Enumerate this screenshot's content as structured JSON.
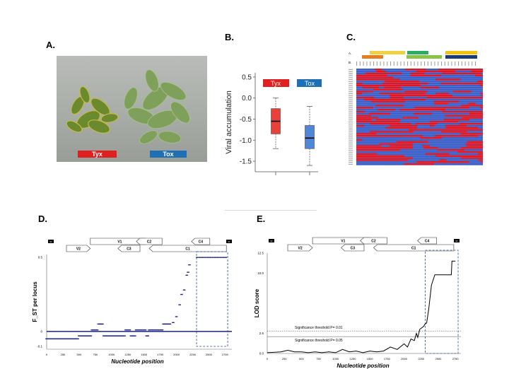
{
  "panels": {
    "a": {
      "letter": "A.",
      "labels": [
        "Tyx",
        "Tox"
      ],
      "colors": {
        "tyx": "#e02020",
        "tox": "#1f6fb5"
      }
    },
    "b": {
      "letter": "B."
    },
    "c": {
      "letter": "C.",
      "row_labels": [
        "A.",
        "B."
      ],
      "colors": {
        "red": "#e8141c",
        "blue": "#3b5fc8"
      }
    },
    "d": {
      "letter": "D."
    },
    "e": {
      "letter": "E."
    }
  },
  "chart_data": [
    {
      "id": "B",
      "type": "box",
      "ylabel": "Viral accumulation",
      "ylim": [
        -1.75,
        0.6
      ],
      "ticks_y": [
        "0.5",
        "0.0",
        "-0.5",
        "-1.0",
        "-1.5"
      ],
      "ticks_y_values": [
        0.5,
        0.0,
        -0.5,
        -1.0,
        -1.5
      ],
      "legend": [
        "Tyx",
        "Tox"
      ],
      "series": [
        {
          "name": "Tyx",
          "color": "#e8413a",
          "min": -1.2,
          "q1": -0.85,
          "median": -0.55,
          "q3": -0.25,
          "max": 0.0
        },
        {
          "name": "Tox",
          "color": "#4f86d6",
          "min": -1.6,
          "q1": -1.2,
          "median": -0.95,
          "q3": -0.65,
          "max": -0.2
        }
      ]
    },
    {
      "id": "D",
      "type": "scatter",
      "xlabel": "Nucleotide position",
      "ylabel": "F_ST per locus",
      "xlim": [
        0,
        2800
      ],
      "ylim": [
        -0.12,
        0.52
      ],
      "ticks_x": [
        "0",
        "250",
        "500",
        "750",
        "1000",
        "1250",
        "1500",
        "1750",
        "2000",
        "2250",
        "2500",
        "2750"
      ],
      "ticks_x_values": [
        0,
        250,
        500,
        750,
        1000,
        1250,
        1500,
        1750,
        2000,
        2250,
        2500,
        2750
      ],
      "ticks_y": [
        "0.5",
        "0",
        "-0.1"
      ],
      "ticks_y_values": [
        0.5,
        0,
        -0.1
      ],
      "genome_map": [
        "V1",
        "V2",
        "C3",
        "C2",
        "C1",
        "C4",
        "IR",
        "IR"
      ],
      "highlight_region": [
        2310,
        2790
      ],
      "points": [
        [
          0,
          -0.05
        ],
        [
          20,
          -0.05
        ],
        [
          40,
          -0.05
        ],
        [
          60,
          -0.05
        ],
        [
          80,
          -0.05
        ],
        [
          100,
          -0.05
        ],
        [
          120,
          -0.05
        ],
        [
          140,
          -0.05
        ],
        [
          160,
          -0.05
        ],
        [
          180,
          -0.05
        ],
        [
          200,
          -0.05
        ],
        [
          220,
          -0.05
        ],
        [
          240,
          -0.05
        ],
        [
          260,
          -0.05
        ],
        [
          280,
          -0.05
        ],
        [
          300,
          -0.05
        ],
        [
          320,
          -0.05
        ],
        [
          340,
          -0.05
        ],
        [
          360,
          -0.05
        ],
        [
          380,
          -0.05
        ],
        [
          400,
          -0.05
        ],
        [
          420,
          -0.05
        ],
        [
          440,
          -0.05
        ],
        [
          460,
          -0.05
        ],
        [
          480,
          -0.05
        ],
        [
          500,
          -0.03
        ],
        [
          520,
          -0.03
        ],
        [
          540,
          -0.03
        ],
        [
          560,
          -0.03
        ],
        [
          580,
          -0.03
        ],
        [
          600,
          -0.03
        ],
        [
          620,
          -0.03
        ],
        [
          640,
          -0.03
        ],
        [
          660,
          -0.03
        ],
        [
          680,
          -0.03
        ],
        [
          700,
          0.01
        ],
        [
          720,
          0.01
        ],
        [
          740,
          0.01
        ],
        [
          760,
          0.01
        ],
        [
          780,
          0.01
        ],
        [
          800,
          0.05
        ],
        [
          820,
          0.05
        ],
        [
          840,
          0.05
        ],
        [
          860,
          0.05
        ],
        [
          880,
          -0.03
        ],
        [
          900,
          -0.03
        ],
        [
          920,
          -0.03
        ],
        [
          940,
          -0.03
        ],
        [
          960,
          -0.03
        ],
        [
          980,
          -0.03
        ],
        [
          1000,
          -0.03
        ],
        [
          1020,
          -0.03
        ],
        [
          1040,
          -0.03
        ],
        [
          1060,
          -0.03
        ],
        [
          1080,
          -0.03
        ],
        [
          1100,
          -0.03
        ],
        [
          1120,
          -0.03
        ],
        [
          1140,
          -0.03
        ],
        [
          1160,
          -0.03
        ],
        [
          1180,
          -0.03
        ],
        [
          1200,
          -0.03
        ],
        [
          1220,
          0.01
        ],
        [
          1240,
          0.01
        ],
        [
          1260,
          0.01
        ],
        [
          1280,
          0.01
        ],
        [
          1300,
          -0.03
        ],
        [
          1320,
          -0.03
        ],
        [
          1340,
          -0.03
        ],
        [
          1360,
          -0.03
        ],
        [
          1380,
          0.01
        ],
        [
          1400,
          0.01
        ],
        [
          1420,
          0.01
        ],
        [
          1440,
          0.01
        ],
        [
          1460,
          0.01
        ],
        [
          1480,
          0.01
        ],
        [
          1500,
          0.01
        ],
        [
          1520,
          0.01
        ],
        [
          1540,
          -0.03
        ],
        [
          1560,
          -0.03
        ],
        [
          1580,
          0.01
        ],
        [
          1600,
          0.01
        ],
        [
          1620,
          0.01
        ],
        [
          1640,
          0.01
        ],
        [
          1660,
          0.01
        ],
        [
          1680,
          0.01
        ],
        [
          1700,
          0.01
        ],
        [
          1720,
          0.01
        ],
        [
          1740,
          0.01
        ],
        [
          1760,
          0.01
        ],
        [
          1780,
          0.01
        ],
        [
          1800,
          0.05
        ],
        [
          1820,
          0.05
        ],
        [
          1840,
          0.05
        ],
        [
          1860,
          0.05
        ],
        [
          1880,
          0.05
        ],
        [
          1900,
          0.05
        ],
        [
          1950,
          0.06
        ],
        [
          2000,
          0.1
        ],
        [
          2050,
          0.18
        ],
        [
          2080,
          0.25
        ],
        [
          2120,
          0.28
        ],
        [
          2160,
          0.38
        ],
        [
          2180,
          0.4
        ],
        [
          2200,
          0.45
        ],
        [
          2320,
          0.5
        ],
        [
          2360,
          0.5
        ],
        [
          2400,
          0.5
        ],
        [
          2440,
          0.5
        ],
        [
          2480,
          0.5
        ],
        [
          2520,
          0.5
        ],
        [
          2560,
          0.5
        ],
        [
          2600,
          0.5
        ],
        [
          2640,
          0.5
        ],
        [
          2680,
          0.5
        ],
        [
          2720,
          0.5
        ],
        [
          2760,
          0.5
        ]
      ]
    },
    {
      "id": "E",
      "type": "line",
      "xlabel": "Nucleotide position",
      "ylabel": "LOD score",
      "xlim": [
        0,
        2800
      ],
      "ylim": [
        0,
        12.5
      ],
      "ticks_x": [
        "0",
        "250",
        "500",
        "750",
        "1000",
        "1250",
        "1500",
        "1750",
        "2000",
        "2250",
        "2500",
        "2750"
      ],
      "ticks_x_values": [
        0,
        250,
        500,
        750,
        1000,
        1250,
        1500,
        1750,
        2000,
        2250,
        2500,
        2750
      ],
      "ticks_y": [
        "12.5",
        "10.0",
        "2.5",
        "0.0"
      ],
      "ticks_y_values": [
        12.5,
        10.0,
        2.5,
        0.0
      ],
      "genome_map": [
        "V1",
        "V2",
        "C3",
        "C2",
        "C1",
        "C4",
        "IR",
        "IR"
      ],
      "highlight_region": [
        2310,
        2790
      ],
      "thresholds": [
        {
          "label": "Significance threshold P= 0.01",
          "value": 2.8
        },
        {
          "label": "Significance threshold P= 0.05",
          "value": 2.1
        }
      ],
      "x": [
        0,
        200,
        300,
        400,
        500,
        600,
        700,
        800,
        900,
        1000,
        1100,
        1200,
        1300,
        1400,
        1500,
        1600,
        1700,
        1800,
        1900,
        2000,
        2050,
        2100,
        2150,
        2180,
        2200,
        2230,
        2260,
        2290,
        2300,
        2330,
        2360,
        2400,
        2450,
        2500,
        2600,
        2690,
        2700,
        2750
      ],
      "y": [
        0.1,
        0.2,
        0.4,
        0.2,
        0.2,
        0.1,
        0.2,
        0.1,
        0.2,
        0.1,
        0.5,
        0.2,
        0.3,
        0.1,
        0.3,
        0.2,
        0.3,
        0.8,
        0.5,
        1.2,
        0.8,
        1.8,
        1.6,
        2.5,
        2.0,
        3.0,
        3.2,
        3.4,
        3.6,
        3.8,
        5.5,
        8.5,
        9.8,
        9.8,
        9.8,
        9.8,
        11.5,
        11.5
      ]
    }
  ]
}
